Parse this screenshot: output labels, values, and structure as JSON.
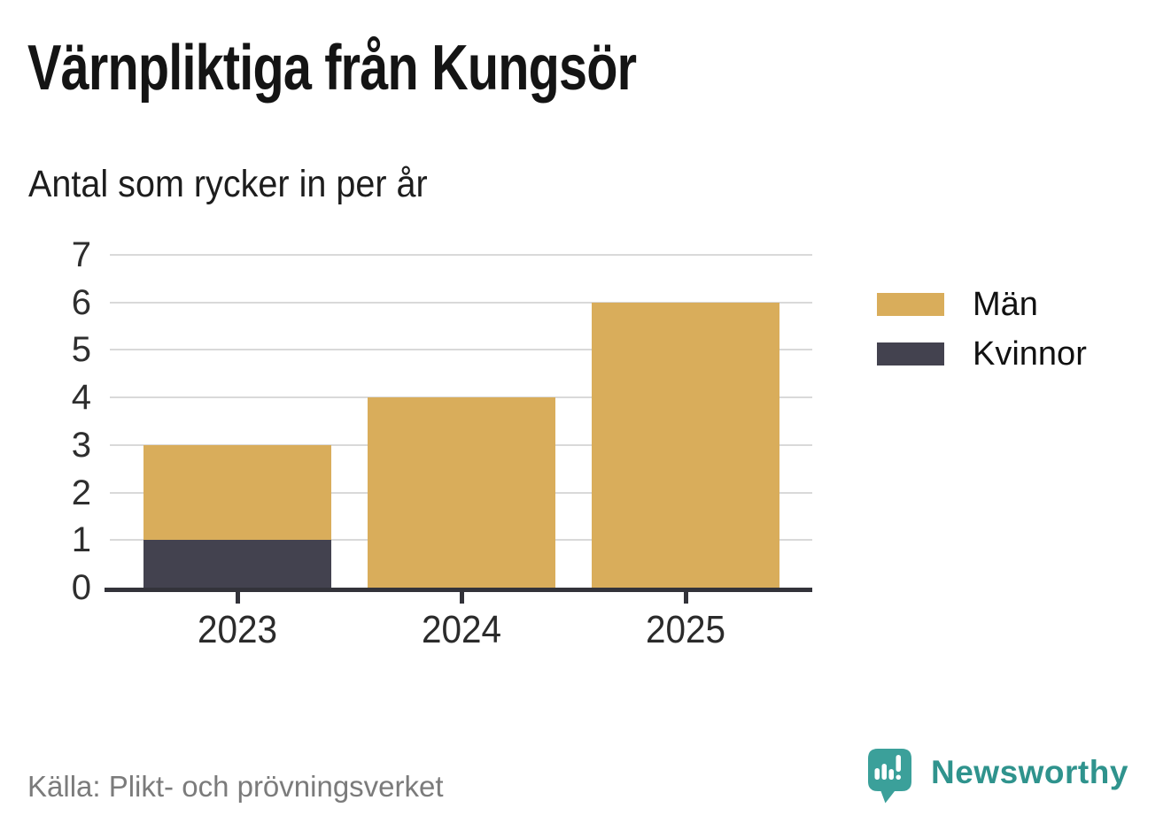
{
  "chart_data": {
    "type": "bar",
    "stacked": true,
    "title": "Värnpliktiga från Kungsör",
    "subtitle": "Antal som rycker in per år",
    "categories": [
      "2023",
      "2024",
      "2025"
    ],
    "series": [
      {
        "name": "Män",
        "color": "#d9ad5b",
        "values": [
          2,
          4,
          6
        ]
      },
      {
        "name": "Kvinnor",
        "color": "#43424f",
        "values": [
          1,
          0,
          0
        ]
      }
    ],
    "stack_totals": [
      3,
      4,
      6
    ],
    "ylim": [
      0,
      7
    ],
    "yticks": [
      0,
      1,
      2,
      3,
      4,
      5,
      6,
      7
    ],
    "grid": true,
    "legend_position": "right",
    "colors": {
      "gridline": "#d9d9d9",
      "axis": "#33333a",
      "text": "#2e2e2e"
    }
  },
  "footer": {
    "source": "Källa: Plikt- och prövningsverket",
    "brand": "Newsworthy",
    "brand_color": "#2f938d",
    "brand_icon": "newsworthy-speech-bubble-chart-icon"
  }
}
